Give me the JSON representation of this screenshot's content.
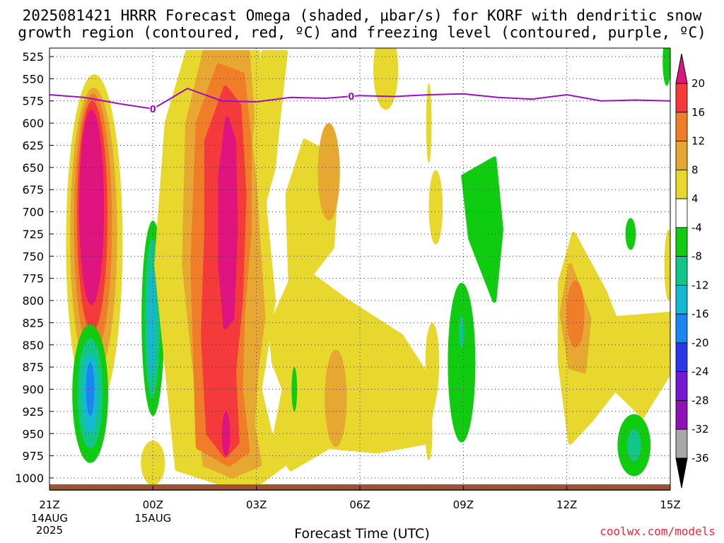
{
  "header": {
    "title_line1": "2025081421 HRRR Forecast Omega (shaded, μbar/s) for KORF with dendritic snow",
    "title_line2": "growth region (contoured, red, ºC) and freezing level (contoured, purple, ºC)"
  },
  "footer": {
    "xlabel": "Forecast Time (UTC)",
    "credit": "coolwx.com/models"
  },
  "chart_data": {
    "type": "heatmap",
    "title": "2025081421 HRRR Forecast Omega (shaded, μbar/s) for KORF with dendritic snow growth region (contoured, red, ºC) and freezing level (contoured, purple, ºC)",
    "xlabel": "Forecast Time (UTC)",
    "ylabel": "",
    "x_ticks": [
      {
        "label": "21Z",
        "sub": [
          "14AUG",
          "2025"
        ],
        "hour": 0
      },
      {
        "label": "00Z",
        "sub": [
          "15AUG"
        ],
        "hour": 3
      },
      {
        "label": "03Z",
        "sub": [],
        "hour": 6
      },
      {
        "label": "06Z",
        "sub": [],
        "hour": 9
      },
      {
        "label": "09Z",
        "sub": [],
        "hour": 12
      },
      {
        "label": "12Z",
        "sub": [],
        "hour": 15
      },
      {
        "label": "15Z",
        "sub": [],
        "hour": 18
      }
    ],
    "xlim_hours": [
      0,
      18
    ],
    "pressure_levels": [
      525,
      550,
      575,
      600,
      625,
      650,
      675,
      700,
      725,
      750,
      775,
      800,
      825,
      850,
      875,
      900,
      925,
      950,
      975,
      1000
    ],
    "ylim_mb": [
      1012,
      520
    ],
    "grid": true,
    "colorbar": {
      "labels": [
        "20",
        "16",
        "12",
        "8",
        "4",
        "-4",
        "-8",
        "-12",
        "-16",
        "-20",
        "-24",
        "-28",
        "-32",
        "-36"
      ],
      "colors": [
        "#e0147e",
        "#f43a3a",
        "#f07e28",
        "#e6a830",
        "#e8d82e",
        "#ffffff",
        "#10cc10",
        "#12c68a",
        "#14b8d0",
        "#1a86f2",
        "#2a38e8",
        "#7418d6",
        "#9010b8",
        "#a8a8a8",
        "#000000"
      ]
    },
    "shading_colors": {
      "y4": "#e8d82e",
      "y8": "#e6a830",
      "o12": "#f07e28",
      "r16": "#f43a3a",
      "m20": "#e0147e",
      "g4": "#10cc10",
      "g8": "#12c68a",
      "c12": "#14b8d0",
      "b16": "#1a86f2"
    },
    "omega_features": [
      {
        "color": "y4",
        "type": "ellipse",
        "t": 1.3,
        "p": 735,
        "rt": 0.82,
        "rp": 190
      },
      {
        "color": "y8",
        "type": "ellipse",
        "t": 1.28,
        "p": 725,
        "rt": 0.68,
        "rp": 165
      },
      {
        "color": "o12",
        "type": "ellipse",
        "t": 1.26,
        "p": 715,
        "rt": 0.55,
        "rp": 148
      },
      {
        "color": "r16",
        "type": "ellipse",
        "t": 1.24,
        "p": 705,
        "rt": 0.44,
        "rp": 130
      },
      {
        "color": "m20",
        "type": "ellipse",
        "t": 1.22,
        "p": 695,
        "rt": 0.36,
        "rp": 110
      },
      {
        "color": "g4",
        "type": "ellipse",
        "t": 1.18,
        "p": 905,
        "rt": 0.52,
        "rp": 78
      },
      {
        "color": "g8",
        "type": "ellipse",
        "t": 1.18,
        "p": 905,
        "rt": 0.37,
        "rp": 62
      },
      {
        "color": "c12",
        "type": "ellipse",
        "t": 1.18,
        "p": 905,
        "rt": 0.23,
        "rp": 45
      },
      {
        "color": "b16",
        "type": "ellipse",
        "t": 1.18,
        "p": 900,
        "rt": 0.12,
        "rp": 30
      },
      {
        "color": "g4",
        "type": "ellipse",
        "t": 3.0,
        "p": 820,
        "rt": 0.33,
        "rp": 110
      },
      {
        "color": "g8",
        "type": "ellipse",
        "t": 2.98,
        "p": 820,
        "rt": 0.22,
        "rp": 90
      },
      {
        "color": "c12",
        "type": "ellipse",
        "t": 2.96,
        "p": 825,
        "rt": 0.11,
        "rp": 60
      },
      {
        "color": "y4",
        "type": "ellipse",
        "t": 3.0,
        "p": 983,
        "rt": 0.35,
        "rp": 25
      },
      {
        "color": "y4",
        "type": "poly",
        "pts": [
          [
            4.0,
            520
          ],
          [
            6.05,
            520
          ],
          [
            6.1,
            600
          ],
          [
            6.25,
            700
          ],
          [
            6.5,
            800
          ],
          [
            6.3,
            850
          ],
          [
            6.1,
            900
          ],
          [
            6.4,
            950
          ],
          [
            6.8,
            985
          ],
          [
            6.1,
            1005
          ],
          [
            4.9,
            1005
          ],
          [
            3.7,
            990
          ],
          [
            3.1,
            760
          ],
          [
            3.4,
            600
          ]
        ]
      },
      {
        "color": "y8",
        "type": "poly",
        "pts": [
          [
            4.5,
            520
          ],
          [
            5.75,
            520
          ],
          [
            5.9,
            600
          ],
          [
            6.0,
            700
          ],
          [
            6.2,
            820
          ],
          [
            6.0,
            880
          ],
          [
            5.9,
            940
          ],
          [
            6.1,
            985
          ],
          [
            5.3,
            998
          ],
          [
            4.5,
            985
          ],
          [
            3.9,
            760
          ],
          [
            4.0,
            600
          ]
        ]
      },
      {
        "color": "o12",
        "type": "poly",
        "pts": [
          [
            4.9,
            535
          ],
          [
            5.6,
            545
          ],
          [
            5.8,
            620
          ],
          [
            5.8,
            720
          ],
          [
            5.6,
            820
          ],
          [
            5.55,
            900
          ],
          [
            5.75,
            970
          ],
          [
            5.2,
            985
          ],
          [
            4.3,
            965
          ],
          [
            4.15,
            760
          ],
          [
            4.3,
            600
          ]
        ]
      },
      {
        "color": "r16",
        "type": "poly",
        "pts": [
          [
            5.1,
            560
          ],
          [
            5.5,
            580
          ],
          [
            5.65,
            680
          ],
          [
            5.55,
            800
          ],
          [
            5.35,
            880
          ],
          [
            5.45,
            960
          ],
          [
            5.1,
            975
          ],
          [
            4.6,
            950
          ],
          [
            4.45,
            840
          ],
          [
            4.55,
            720
          ],
          [
            4.55,
            620
          ]
        ]
      },
      {
        "color": "m20",
        "type": "poly",
        "pts": [
          [
            5.15,
            595
          ],
          [
            5.35,
            620
          ],
          [
            5.4,
            720
          ],
          [
            5.3,
            820
          ],
          [
            5.1,
            830
          ],
          [
            4.95,
            760
          ],
          [
            4.95,
            660
          ]
        ]
      },
      {
        "color": "m20",
        "type": "ellipse",
        "t": 5.12,
        "p": 950,
        "rt": 0.12,
        "rp": 25
      },
      {
        "color": "y4",
        "type": "poly",
        "pts": [
          [
            6.2,
            520
          ],
          [
            6.85,
            520
          ],
          [
            6.65,
            590
          ],
          [
            6.5,
            650
          ],
          [
            6.15,
            700
          ],
          [
            5.95,
            620
          ]
        ]
      },
      {
        "color": "y4",
        "type": "poly",
        "pts": [
          [
            6.4,
            830
          ],
          [
            7.2,
            760
          ],
          [
            8.6,
            800
          ],
          [
            10.2,
            840
          ],
          [
            11.2,
            900
          ],
          [
            10.9,
            960
          ],
          [
            9.5,
            970
          ],
          [
            8.1,
            965
          ],
          [
            7.0,
            990
          ],
          [
            6.5,
            960
          ],
          [
            6.8,
            900
          ],
          [
            6.5,
            870
          ]
        ]
      },
      {
        "color": "y4",
        "type": "poly",
        "pts": [
          [
            6.9,
            680
          ],
          [
            7.4,
            620
          ],
          [
            8.35,
            640
          ],
          [
            8.2,
            740
          ],
          [
            7.0,
            800
          ]
        ]
      },
      {
        "color": "y8",
        "type": "ellipse",
        "t": 8.1,
        "p": 655,
        "rt": 0.32,
        "rp": 55
      },
      {
        "color": "y8",
        "type": "ellipse",
        "t": 8.3,
        "p": 910,
        "rt": 0.32,
        "rp": 55
      },
      {
        "color": "y4",
        "type": "ellipse",
        "t": 9.75,
        "p": 540,
        "rt": 0.36,
        "rp": 45
      },
      {
        "color": "y4",
        "type": "ellipse",
        "t": 11.1,
        "p": 870,
        "rt": 0.2,
        "rp": 45
      },
      {
        "color": "y4",
        "type": "ellipse",
        "t": 11.0,
        "p": 600,
        "rt": 0.08,
        "rp": 45
      },
      {
        "color": "y4",
        "type": "ellipse",
        "t": 11.0,
        "p": 950,
        "rt": 0.1,
        "rp": 30
      },
      {
        "color": "y4",
        "type": "ellipse",
        "t": 11.2,
        "p": 695,
        "rt": 0.2,
        "rp": 42
      },
      {
        "color": "y4",
        "type": "poly",
        "pts": [
          [
            14.8,
            780
          ],
          [
            15.2,
            725
          ],
          [
            16.1,
            790
          ],
          [
            16.4,
            820
          ],
          [
            18.0,
            815
          ],
          [
            18.0,
            880
          ],
          [
            17.2,
            930
          ],
          [
            16.4,
            900
          ],
          [
            15.7,
            935
          ],
          [
            15.1,
            960
          ],
          [
            14.8,
            870
          ]
        ]
      },
      {
        "color": "y8",
        "type": "poly",
        "pts": [
          [
            14.85,
            815
          ],
          [
            15.1,
            760
          ],
          [
            15.65,
            820
          ],
          [
            15.5,
            880
          ],
          [
            15.1,
            875
          ]
        ]
      },
      {
        "color": "o12",
        "type": "ellipse",
        "t": 15.25,
        "p": 815,
        "rt": 0.26,
        "rp": 38
      },
      {
        "color": "g4",
        "type": "poly",
        "pts": [
          [
            12.0,
            660
          ],
          [
            12.9,
            640
          ],
          [
            13.1,
            720
          ],
          [
            12.9,
            800
          ],
          [
            12.2,
            730
          ]
        ]
      },
      {
        "color": "g4",
        "type": "ellipse",
        "t": 11.95,
        "p": 870,
        "rt": 0.4,
        "rp": 90
      },
      {
        "color": "g8",
        "type": "ellipse",
        "t": 11.95,
        "p": 835,
        "rt": 0.08,
        "rp": 18
      },
      {
        "color": "g4",
        "type": "ellipse",
        "t": 16.95,
        "p": 963,
        "rt": 0.48,
        "rp": 35
      },
      {
        "color": "g8",
        "type": "ellipse",
        "t": 16.95,
        "p": 963,
        "rt": 0.2,
        "rp": 18
      },
      {
        "color": "g4",
        "type": "ellipse",
        "t": 16.85,
        "p": 725,
        "rt": 0.15,
        "rp": 18
      },
      {
        "color": "g4",
        "type": "ellipse",
        "t": 7.1,
        "p": 900,
        "rt": 0.08,
        "rp": 25
      },
      {
        "color": "g4",
        "type": "ellipse",
        "t": 17.9,
        "p": 530,
        "rt": 0.12,
        "rp": 28
      },
      {
        "color": "y4",
        "type": "ellipse",
        "t": 17.95,
        "p": 760,
        "rt": 0.12,
        "rp": 40
      }
    ],
    "freezing_level": {
      "label": "0",
      "color": "#9a10c0",
      "series": [
        {
          "hour": 0,
          "p": 568
        },
        {
          "hour": 1,
          "p": 571
        },
        {
          "hour": 2,
          "p": 578
        },
        {
          "hour": 3,
          "p": 584
        },
        {
          "hour": 4,
          "p": 561
        },
        {
          "hour": 5,
          "p": 575
        },
        {
          "hour": 6,
          "p": 576
        },
        {
          "hour": 7,
          "p": 571
        },
        {
          "hour": 8,
          "p": 572
        },
        {
          "hour": 9,
          "p": 569
        },
        {
          "hour": 10,
          "p": 570
        },
        {
          "hour": 11,
          "p": 568
        },
        {
          "hour": 12,
          "p": 567
        },
        {
          "hour": 13,
          "p": 571
        },
        {
          "hour": 14,
          "p": 573
        },
        {
          "hour": 15,
          "p": 568
        },
        {
          "hour": 16,
          "p": 575
        },
        {
          "hour": 17,
          "p": 574
        },
        {
          "hour": 18,
          "p": 575
        }
      ],
      "label_hours": [
        3,
        8.75
      ]
    },
    "terrain_color": "#a0522d"
  }
}
